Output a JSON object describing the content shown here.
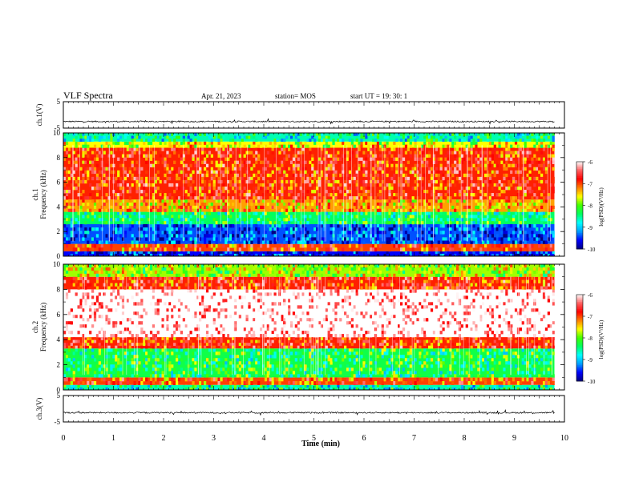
{
  "header": {
    "title": "VLF Spectra",
    "date": "Apr. 21, 2023",
    "station": "station= MOS",
    "start": "start  UT =   19: 30: 1"
  },
  "chart_data": [
    {
      "type": "line",
      "panel": "ch1-waveform",
      "ylabel": "ch.1(V)",
      "ylim": [
        -5,
        5
      ],
      "yticks": [
        "5",
        "-5"
      ],
      "xlim": [
        0,
        10
      ],
      "baseline": -2.5,
      "data_extent_min": 9.8,
      "color": "#000000"
    },
    {
      "type": "heatmap",
      "panel": "ch1-spectrogram",
      "ylabel": "ch.1\nFrequency  (kHz)",
      "ylim": [
        0,
        10
      ],
      "yticks": [
        "0",
        "2",
        "4",
        "6",
        "8",
        "10"
      ],
      "xlim": [
        0,
        10
      ],
      "data_extent_min": 9.8,
      "bands": [
        {
          "from_khz": 0.0,
          "to_khz": 0.4,
          "log_psd": -9.6
        },
        {
          "from_khz": 0.4,
          "to_khz": 1.0,
          "log_psd": -7.0
        },
        {
          "from_khz": 1.0,
          "to_khz": 2.6,
          "log_psd": -9.4
        },
        {
          "from_khz": 2.6,
          "to_khz": 3.6,
          "log_psd": -8.4
        },
        {
          "from_khz": 3.6,
          "to_khz": 4.6,
          "log_psd": -7.3
        },
        {
          "from_khz": 4.6,
          "to_khz": 8.8,
          "log_psd": -6.9
        },
        {
          "from_khz": 8.8,
          "to_khz": 9.3,
          "log_psd": -7.6
        },
        {
          "from_khz": 9.3,
          "to_khz": 10.0,
          "log_psd": -8.6
        }
      ],
      "colorbar": {
        "min": -10,
        "max": -6,
        "ticks": [
          "-6",
          "-7",
          "-8",
          "-9",
          "-10"
        ],
        "label": "log(PSD)(V²/Hz)"
      }
    },
    {
      "type": "heatmap",
      "panel": "ch2-spectrogram",
      "ylabel": "ch.2\nFrequency  (kHz)",
      "ylim": [
        0,
        10
      ],
      "yticks": [
        "0",
        "2",
        "4",
        "6",
        "8",
        "10"
      ],
      "xlim": [
        0,
        10
      ],
      "data_extent_min": 9.8,
      "bands": [
        {
          "from_khz": 0.0,
          "to_khz": 0.4,
          "log_psd": -8.6
        },
        {
          "from_khz": 0.4,
          "to_khz": 1.0,
          "log_psd": -7.0
        },
        {
          "from_khz": 1.0,
          "to_khz": 3.3,
          "log_psd": -8.3
        },
        {
          "from_khz": 3.3,
          "to_khz": 4.2,
          "log_psd": -6.9
        },
        {
          "from_khz": 4.2,
          "to_khz": 8.0,
          "log_psd": -6.0
        },
        {
          "from_khz": 8.0,
          "to_khz": 9.0,
          "log_psd": -6.9
        },
        {
          "from_khz": 9.0,
          "to_khz": 10.0,
          "log_psd": -7.8
        }
      ],
      "colorbar": {
        "min": -10,
        "max": -6,
        "ticks": [
          "-6",
          "-7",
          "-8",
          "-9",
          "-10"
        ],
        "label": "log(PSD)(V²/Hz)"
      }
    },
    {
      "type": "line",
      "panel": "ch3-waveform",
      "ylabel": "ch.3(V)",
      "ylim": [
        -5,
        5
      ],
      "yticks": [
        "5",
        "-5"
      ],
      "xlim": [
        0,
        10
      ],
      "baseline": -1.5,
      "data_extent_min": 9.8,
      "color": "#000000"
    }
  ],
  "x_axis": {
    "label": "Time  (min)",
    "ticks": [
      "0",
      "1",
      "2",
      "3",
      "4",
      "5",
      "6",
      "7",
      "8",
      "9",
      "10"
    ],
    "range": [
      0,
      10
    ]
  },
  "colormap": [
    "#000080",
    "#0000ff",
    "#00a0ff",
    "#00ffff",
    "#00ff60",
    "#40ff00",
    "#ffff00",
    "#ff8000",
    "#ff0000",
    "#ff6060",
    "#ffffff"
  ]
}
